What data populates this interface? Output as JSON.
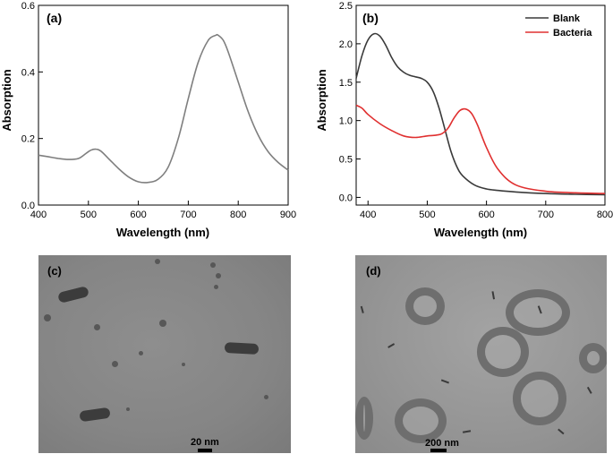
{
  "chart_data": [
    {
      "type": "line",
      "panel_label": "(a)",
      "xlabel": "Wavelength (nm)",
      "ylabel": "Absorption",
      "xlim": [
        400,
        900
      ],
      "ylim": [
        0.0,
        0.6
      ],
      "x_ticks": [
        400,
        500,
        600,
        700,
        800,
        900
      ],
      "y_ticks": [
        0.0,
        0.2,
        0.4,
        0.6
      ],
      "x_tick_labels": [
        "400",
        "500",
        "600",
        "700",
        "800",
        "900"
      ],
      "y_tick_labels": [
        "0.0",
        "0.2",
        "0.4",
        "0.6"
      ],
      "series": [
        {
          "color": "#7f7f7f",
          "x": [
            400,
            420,
            440,
            460,
            480,
            495,
            505,
            515,
            525,
            540,
            560,
            580,
            600,
            620,
            640,
            660,
            680,
            700,
            720,
            740,
            755,
            760,
            770,
            780,
            800,
            820,
            840,
            860,
            880,
            900
          ],
          "y": [
            0.15,
            0.145,
            0.14,
            0.137,
            0.14,
            0.155,
            0.165,
            0.168,
            0.162,
            0.14,
            0.11,
            0.085,
            0.07,
            0.068,
            0.078,
            0.115,
            0.2,
            0.32,
            0.43,
            0.495,
            0.51,
            0.51,
            0.495,
            0.46,
            0.37,
            0.28,
            0.21,
            0.16,
            0.128,
            0.105
          ]
        }
      ]
    },
    {
      "type": "line",
      "panel_label": "(b)",
      "xlabel": "Wavelength (nm)",
      "ylabel": "Absorption",
      "xlim": [
        380,
        800
      ],
      "ylim": [
        -0.1,
        2.5
      ],
      "x_ticks": [
        400,
        500,
        600,
        700,
        800
      ],
      "y_ticks": [
        0.0,
        0.5,
        1.0,
        1.5,
        2.0,
        2.5
      ],
      "x_tick_labels": [
        "400",
        "500",
        "600",
        "700",
        "800"
      ],
      "y_tick_labels": [
        "0.0",
        "0.5",
        "1.0",
        "1.5",
        "2.0",
        "2.5"
      ],
      "legend_position": "top-right",
      "series": [
        {
          "name": "Blank",
          "color": "#3a3a3a",
          "x": [
            380,
            390,
            400,
            410,
            420,
            430,
            440,
            450,
            460,
            470,
            480,
            490,
            500,
            510,
            520,
            530,
            540,
            550,
            560,
            580,
            600,
            620,
            650,
            700,
            750,
            800
          ],
          "y": [
            1.55,
            1.85,
            2.05,
            2.13,
            2.1,
            1.98,
            1.82,
            1.7,
            1.63,
            1.59,
            1.57,
            1.55,
            1.5,
            1.38,
            1.16,
            0.88,
            0.6,
            0.4,
            0.28,
            0.16,
            0.11,
            0.09,
            0.07,
            0.05,
            0.04,
            0.035
          ]
        },
        {
          "name": "Bacteria",
          "color": "#e03030",
          "x": [
            380,
            390,
            400,
            420,
            440,
            460,
            480,
            500,
            515,
            525,
            535,
            545,
            555,
            565,
            575,
            585,
            600,
            620,
            650,
            700,
            750,
            800
          ],
          "y": [
            1.2,
            1.16,
            1.08,
            0.96,
            0.87,
            0.8,
            0.78,
            0.8,
            0.81,
            0.83,
            0.9,
            1.03,
            1.13,
            1.15,
            1.09,
            0.94,
            0.65,
            0.36,
            0.16,
            0.08,
            0.06,
            0.05
          ]
        }
      ]
    }
  ],
  "images": {
    "c": {
      "panel_label": "(c)",
      "scale_bar": "20 nm"
    },
    "d": {
      "panel_label": "(d)",
      "scale_bar": "200 nm"
    }
  }
}
